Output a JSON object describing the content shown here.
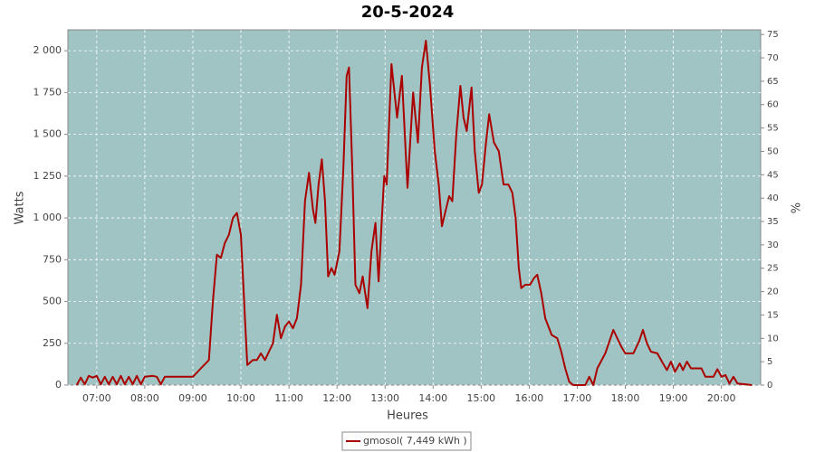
{
  "chart_data": {
    "type": "line",
    "title": "20-5-2024",
    "x_label": "Heures",
    "y_label": "Watts",
    "y2_label": "%",
    "x": [
      "06:35",
      "06:40",
      "06:45",
      "06:50",
      "06:55",
      "07:00",
      "07:05",
      "07:10",
      "07:15",
      "07:20",
      "07:25",
      "07:30",
      "07:35",
      "07:40",
      "07:45",
      "07:50",
      "07:55",
      "08:00",
      "08:10",
      "08:15",
      "08:20",
      "08:25",
      "08:35",
      "09:00",
      "09:10",
      "09:20",
      "09:25",
      "09:30",
      "09:35",
      "09:40",
      "09:45",
      "09:50",
      "09:55",
      "10:00",
      "10:05",
      "10:08",
      "10:15",
      "10:20",
      "10:25",
      "10:30",
      "10:35",
      "10:40",
      "10:45",
      "10:50",
      "10:55",
      "11:00",
      "11:05",
      "11:10",
      "11:15",
      "11:20",
      "11:25",
      "11:30",
      "11:33",
      "11:37",
      "11:41",
      "11:45",
      "11:49",
      "11:53",
      "11:57",
      "12:03",
      "12:08",
      "12:12",
      "12:15",
      "12:19",
      "12:23",
      "12:28",
      "12:32",
      "12:38",
      "12:43",
      "12:48",
      "12:52",
      "12:56",
      "12:59",
      "13:02",
      "13:08",
      "13:15",
      "13:21",
      "13:28",
      "13:35",
      "13:41",
      "13:46",
      "13:51",
      "13:56",
      "14:02",
      "14:07",
      "14:11",
      "14:16",
      "14:20",
      "14:24",
      "14:29",
      "14:34",
      "14:38",
      "14:42",
      "14:48",
      "14:52",
      "14:57",
      "15:01",
      "15:06",
      "15:10",
      "15:16",
      "15:22",
      "15:28",
      "15:34",
      "15:39",
      "15:43",
      "15:47",
      "15:50",
      "15:55",
      "16:01",
      "16:06",
      "16:10",
      "16:15",
      "16:20",
      "16:28",
      "16:35",
      "16:40",
      "16:45",
      "16:50",
      "16:55",
      "17:10",
      "17:15",
      "17:20",
      "17:25",
      "17:35",
      "17:45",
      "17:55",
      "18:00",
      "18:10",
      "18:17",
      "18:22",
      "18:27",
      "18:32",
      "18:40",
      "18:47",
      "18:52",
      "18:57",
      "19:02",
      "19:08",
      "19:12",
      "19:17",
      "19:22",
      "19:35",
      "19:40",
      "19:50",
      "19:55",
      "20:00",
      "20:05",
      "20:10",
      "20:15",
      "20:20",
      "20:30",
      "20:38"
    ],
    "series": [
      {
        "name": "gmosol( 7,449 kWh )",
        "color": "#aa0000",
        "values": [
          0,
          45,
          5,
          55,
          45,
          55,
          5,
          50,
          5,
          50,
          5,
          55,
          5,
          50,
          5,
          55,
          5,
          50,
          55,
          50,
          5,
          50,
          50,
          50,
          100,
          150,
          500,
          780,
          760,
          850,
          900,
          1000,
          1030,
          900,
          400,
          120,
          150,
          150,
          190,
          150,
          200,
          250,
          420,
          280,
          350,
          380,
          340,
          400,
          600,
          1100,
          1270,
          1050,
          970,
          1200,
          1350,
          1100,
          650,
          700,
          660,
          800,
          1300,
          1850,
          1900,
          1300,
          600,
          550,
          650,
          460,
          800,
          970,
          620,
          1000,
          1250,
          1200,
          1920,
          1600,
          1850,
          1180,
          1750,
          1450,
          1900,
          2060,
          1800,
          1400,
          1200,
          950,
          1050,
          1130,
          1100,
          1500,
          1790,
          1600,
          1520,
          1780,
          1400,
          1150,
          1200,
          1450,
          1620,
          1450,
          1400,
          1200,
          1200,
          1150,
          1000,
          700,
          580,
          600,
          600,
          640,
          660,
          550,
          400,
          300,
          280,
          200,
          100,
          20,
          0,
          0,
          50,
          0,
          100,
          190,
          330,
          230,
          190,
          190,
          260,
          330,
          250,
          200,
          190,
          130,
          90,
          140,
          80,
          130,
          90,
          140,
          100,
          100,
          50,
          50,
          95,
          50,
          60,
          10,
          50,
          10,
          5,
          0
        ]
      }
    ],
    "xlim": [
      "06:24",
      "20:49"
    ],
    "xticks": [
      "07:00",
      "08:00",
      "09:00",
      "10:00",
      "11:00",
      "12:00",
      "13:00",
      "14:00",
      "15:00",
      "16:00",
      "17:00",
      "18:00",
      "19:00",
      "20:00"
    ],
    "ylim": [
      0,
      2125
    ],
    "yticks": [
      0,
      250,
      500,
      750,
      {
        "value": 1000,
        "label": "1 000"
      },
      {
        "value": 1250,
        "label": "1 250"
      },
      {
        "value": 1500,
        "label": "1 500"
      },
      {
        "value": 1750,
        "label": "1 750"
      },
      {
        "value": 2000,
        "label": "2 000"
      }
    ],
    "y2lim": [
      0,
      76
    ],
    "y2ticks": [
      0,
      5,
      10,
      15,
      20,
      25,
      30,
      35,
      40,
      45,
      50,
      55,
      60,
      65,
      70,
      75
    ],
    "grid": true,
    "plot_background": "#a0c4c4",
    "legend": "bottom"
  }
}
